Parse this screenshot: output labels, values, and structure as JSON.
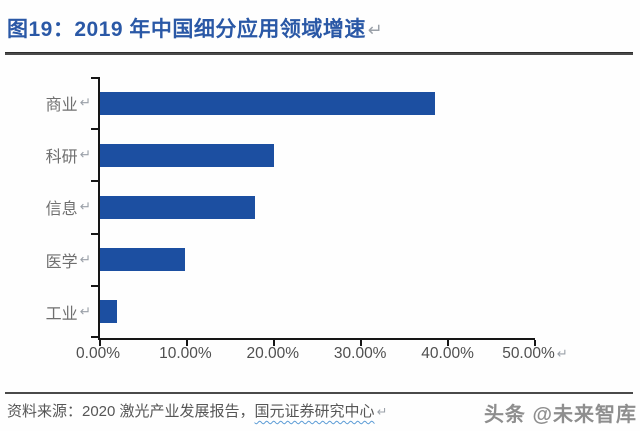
{
  "page": {
    "title": "图19：2019 年中国细分应用领域增速",
    "paragraph_mark": "↵"
  },
  "chart_data": {
    "type": "bar",
    "orientation": "horizontal",
    "title": "2019 年中国细分应用领域增速",
    "categories": [
      "商业",
      "科研",
      "信息",
      "医学",
      "工业"
    ],
    "values": [
      38.5,
      20.0,
      17.8,
      9.8,
      2.0
    ],
    "unit": "%",
    "xlim": [
      0,
      50
    ],
    "x_tick_labels": [
      "0.00%",
      "10.00%",
      "20.00%",
      "30.00%",
      "40.00%",
      "50.00%"
    ],
    "bar_color": "#1c4fa1",
    "axis_color": "#161616",
    "grid": false,
    "legend": false
  },
  "footer": {
    "source_prefix": "资料来源：2020 激光产业发展报告，",
    "source_underlined": "国元证券研究中心",
    "watermark": "头条 @未来智库"
  }
}
